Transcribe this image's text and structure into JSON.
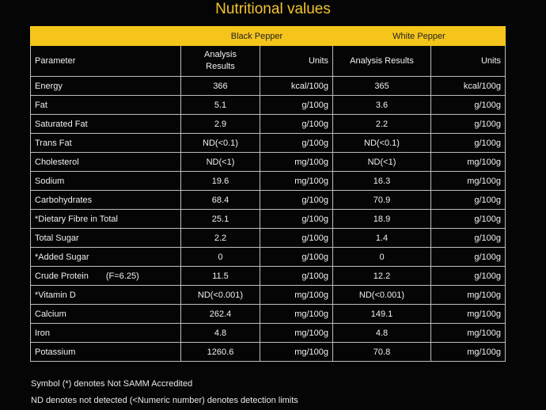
{
  "title": "Nutritional values",
  "groups": {
    "black": "Black Pepper",
    "white": "White Pepper"
  },
  "headers": {
    "parameter": "Parameter",
    "black_results": "Analysis Results",
    "black_units": "Units",
    "white_results": "Analysis Results",
    "white_units": "Units"
  },
  "rows": [
    {
      "param": "Energy",
      "black": "366",
      "black_unit": "kcal/100g",
      "white": "365",
      "white_unit": "kcal/100g"
    },
    {
      "param": "Fat",
      "black": "5.1",
      "black_unit": "g/100g",
      "white": "3.6",
      "white_unit": "g/100g"
    },
    {
      "param": "Saturated Fat",
      "black": "2.9",
      "black_unit": "g/100g",
      "white": "2.2",
      "white_unit": "g/100g"
    },
    {
      "param": "Trans Fat",
      "black": "ND(<0.1)",
      "black_unit": "g/100g",
      "white": "ND(<0.1)",
      "white_unit": "g/100g"
    },
    {
      "param": "Cholesterol",
      "black": "ND(<1)",
      "black_unit": "mg/100g",
      "white": "ND(<1)",
      "white_unit": "mg/100g"
    },
    {
      "param": "Sodium",
      "black": "19.6",
      "black_unit": "mg/100g",
      "white": "16.3",
      "white_unit": "mg/100g"
    },
    {
      "param": "Carbohydrates",
      "black": "68.4",
      "black_unit": "g/100g",
      "white": "70.9",
      "white_unit": "g/100g"
    },
    {
      "param": "*Dietary Fibre in Total",
      "black": "25.1",
      "black_unit": "g/100g",
      "white": "18.9",
      "white_unit": "g/100g"
    },
    {
      "param": "Total Sugar",
      "black": "2.2",
      "black_unit": "g/100g",
      "white": "1.4",
      "white_unit": "g/100g"
    },
    {
      "param": "*Added Sugar",
      "black": "0",
      "black_unit": "g/100g",
      "white": "0",
      "white_unit": "g/100g"
    },
    {
      "param": "Crude Protein",
      "param_extra": "(F=6.25)",
      "black": "11.5",
      "black_unit": "g/100g",
      "white": "12.2",
      "white_unit": "g/100g"
    },
    {
      "param": "*Vitamin D",
      "black": "ND(<0.001)",
      "black_unit": "mg/100g",
      "white": "ND(<0.001)",
      "white_unit": "mg/100g"
    },
    {
      "param": "Calcium",
      "black": "262.4",
      "black_unit": "mg/100g",
      "white": "149.1",
      "white_unit": "mg/100g"
    },
    {
      "param": "Iron",
      "black": "4.8",
      "black_unit": "mg/100g",
      "white": "4.8",
      "white_unit": "mg/100g"
    },
    {
      "param": "Potassium",
      "black": "1260.6",
      "black_unit": "mg/100g",
      "white": "70.8",
      "white_unit": "mg/100g"
    }
  ],
  "footnotes": {
    "symbol": "Symbol (*) denotes Not SAMM Accredited",
    "nd": "ND denotes not detected (<Numeric number) denotes detection limits"
  },
  "colors": {
    "accent": "#f5c51b",
    "background": "#050505",
    "text": "#f0f0f0"
  }
}
